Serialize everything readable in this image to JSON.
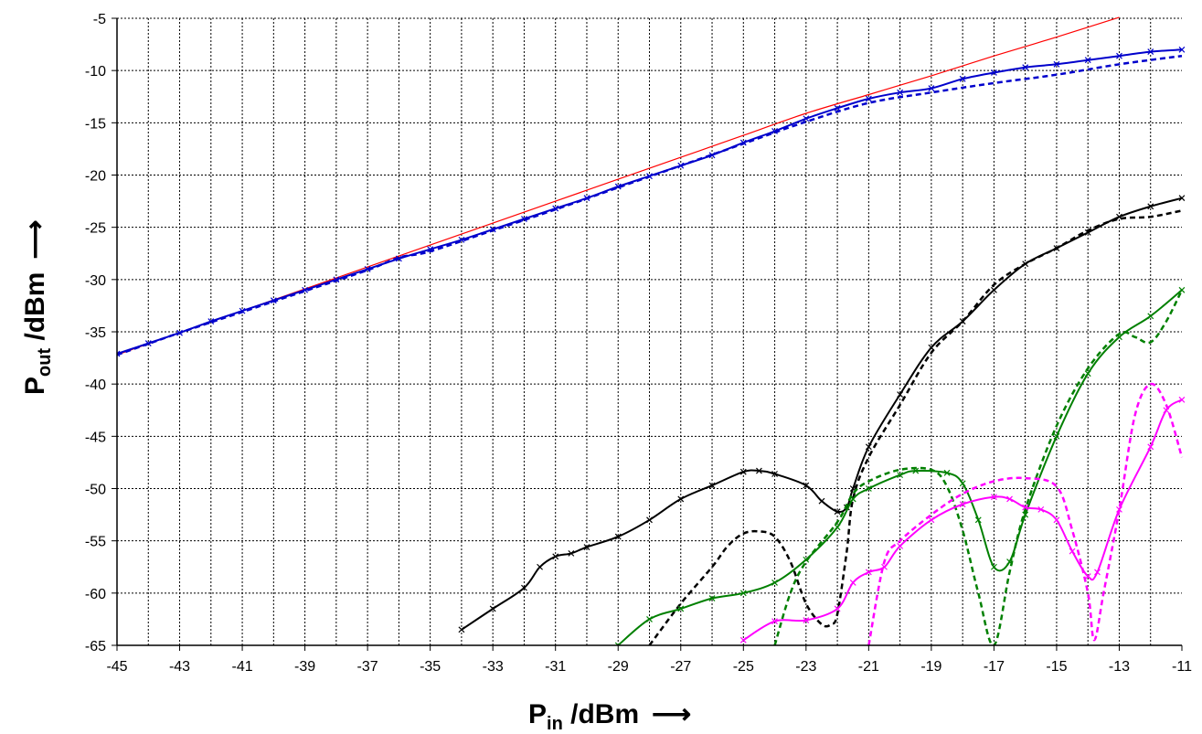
{
  "chart_data": {
    "type": "line",
    "xlabel": {
      "main": "P",
      "sub": "in",
      "rest": " /dBm",
      "arrow": "⟶"
    },
    "ylabel": {
      "main": "P",
      "sub": "out",
      "rest": " /dBm",
      "arrow": "⟶"
    },
    "xlim": [
      -45,
      -11
    ],
    "ylim": [
      -65,
      -5
    ],
    "x_ticks": [
      -45,
      -43,
      -41,
      -39,
      -37,
      -35,
      -33,
      -31,
      -29,
      -27,
      -25,
      -23,
      -21,
      -19,
      -17,
      -15,
      -13,
      -11
    ],
    "y_ticks": [
      -5,
      -10,
      -15,
      -20,
      -25,
      -30,
      -35,
      -40,
      -45,
      -50,
      -55,
      -60,
      -65
    ],
    "grid": true,
    "colors": {
      "red": "#ff0000",
      "blue": "#0000cc",
      "black": "#000000",
      "green": "#008000",
      "magenta": "#ff00ff"
    },
    "series": [
      {
        "color": "red",
        "style": "solid",
        "marker": "none",
        "points": [
          [
            -45,
            -37.2
          ],
          [
            -43,
            -35.1
          ],
          [
            -41,
            -33
          ],
          [
            -39,
            -30.9
          ],
          [
            -37,
            -28.8
          ],
          [
            -35,
            -26.7
          ],
          [
            -33,
            -24.6
          ],
          [
            -31,
            -22.5
          ],
          [
            -29,
            -20.4
          ],
          [
            -27,
            -18.3
          ],
          [
            -25,
            -16.2
          ],
          [
            -23,
            -14.1
          ],
          [
            -21,
            -12.3
          ],
          [
            -19,
            -10.5
          ],
          [
            -17,
            -8.6
          ],
          [
            -15,
            -6.8
          ],
          [
            -13,
            -4.9
          ]
        ]
      },
      {
        "color": "blue",
        "style": "solid",
        "marker": "x",
        "points": [
          [
            -45,
            -37.1
          ],
          [
            -44,
            -36.1
          ],
          [
            -43,
            -35.1
          ],
          [
            -42,
            -34
          ],
          [
            -41,
            -33
          ],
          [
            -40,
            -32
          ],
          [
            -39,
            -31
          ],
          [
            -38,
            -30
          ],
          [
            -37,
            -29
          ],
          [
            -36,
            -28
          ],
          [
            -35,
            -27.1
          ],
          [
            -34,
            -26.2
          ],
          [
            -33,
            -25.2
          ],
          [
            -32,
            -24.2
          ],
          [
            -31,
            -23.2
          ],
          [
            -30,
            -22.2
          ],
          [
            -29,
            -21.1
          ],
          [
            -28,
            -20.1
          ],
          [
            -27,
            -19.1
          ],
          [
            -26,
            -18.1
          ],
          [
            -25,
            -16.9
          ],
          [
            -24,
            -15.8
          ],
          [
            -23,
            -14.6
          ],
          [
            -22,
            -13.6
          ],
          [
            -21,
            -12.7
          ],
          [
            -20,
            -12.1
          ],
          [
            -19,
            -11.7
          ],
          [
            -18,
            -10.8
          ],
          [
            -17,
            -10.2
          ],
          [
            -16,
            -9.7
          ],
          [
            -15,
            -9.4
          ],
          [
            -14,
            -9
          ],
          [
            -13,
            -8.6
          ],
          [
            -12,
            -8.2
          ],
          [
            -11,
            -8
          ]
        ]
      },
      {
        "color": "blue",
        "style": "dashed",
        "marker": "none",
        "points": [
          [
            -45,
            -37.2
          ],
          [
            -43,
            -35.1
          ],
          [
            -41,
            -33.1
          ],
          [
            -39,
            -31.1
          ],
          [
            -37,
            -29.1
          ],
          [
            -36,
            -27.9
          ],
          [
            -35,
            -27.3
          ],
          [
            -33,
            -25.3
          ],
          [
            -31,
            -23.3
          ],
          [
            -29,
            -21.2
          ],
          [
            -27,
            -19.1
          ],
          [
            -25,
            -17
          ],
          [
            -23,
            -14.9
          ],
          [
            -21,
            -13.1
          ],
          [
            -19,
            -12.1
          ],
          [
            -17,
            -11.2
          ],
          [
            -15,
            -10.4
          ],
          [
            -13,
            -9.4
          ],
          [
            -11,
            -8.6
          ]
        ]
      },
      {
        "color": "black",
        "style": "solid",
        "marker": "x",
        "points": [
          [
            -34,
            -63.5
          ],
          [
            -33,
            -61.5
          ],
          [
            -32,
            -59.5
          ],
          [
            -31.5,
            -57.5
          ],
          [
            -31,
            -56.5
          ],
          [
            -30.5,
            -56.2
          ],
          [
            -30,
            -55.6
          ],
          [
            -29,
            -54.6
          ],
          [
            -28,
            -53
          ],
          [
            -27,
            -51
          ],
          [
            -26,
            -49.7
          ],
          [
            -25,
            -48.4
          ],
          [
            -24.5,
            -48.3
          ],
          [
            -24,
            -48.6
          ],
          [
            -23,
            -49.7
          ],
          [
            -22.5,
            -51.2
          ],
          [
            -22,
            -52.2
          ],
          [
            -21.7,
            -51.8
          ],
          [
            -21.5,
            -50
          ],
          [
            -21,
            -46
          ],
          [
            -20,
            -41
          ],
          [
            -19,
            -36.5
          ],
          [
            -18,
            -34
          ],
          [
            -17,
            -31
          ],
          [
            -16,
            -28.5
          ],
          [
            -15,
            -27
          ],
          [
            -14,
            -25.5
          ],
          [
            -13,
            -24
          ],
          [
            -12,
            -23
          ],
          [
            -11,
            -22.2
          ]
        ]
      },
      {
        "color": "black",
        "style": "dashed",
        "marker": "none",
        "points": [
          [
            -28,
            -65
          ],
          [
            -27,
            -61
          ],
          [
            -26,
            -57.5
          ],
          [
            -25.5,
            -55.5
          ],
          [
            -25,
            -54.3
          ],
          [
            -24.5,
            -54.1
          ],
          [
            -24,
            -54.6
          ],
          [
            -23.5,
            -57
          ],
          [
            -23,
            -61
          ],
          [
            -22.5,
            -63
          ],
          [
            -22.2,
            -63
          ],
          [
            -22,
            -62
          ],
          [
            -21.7,
            -56
          ],
          [
            -21.5,
            -51
          ],
          [
            -21,
            -47
          ],
          [
            -20,
            -42
          ],
          [
            -19,
            -37
          ],
          [
            -18,
            -34
          ],
          [
            -17,
            -30.5
          ],
          [
            -16,
            -28.5
          ],
          [
            -15,
            -27
          ],
          [
            -14,
            -25.3
          ],
          [
            -13,
            -24.2
          ],
          [
            -12,
            -24
          ],
          [
            -11,
            -23.4
          ]
        ]
      },
      {
        "color": "green",
        "style": "solid",
        "marker": "x",
        "points": [
          [
            -29,
            -65
          ],
          [
            -28,
            -62.5
          ],
          [
            -27,
            -61.5
          ],
          [
            -26,
            -60.5
          ],
          [
            -25,
            -60
          ],
          [
            -24,
            -59
          ],
          [
            -23,
            -56.8
          ],
          [
            -22,
            -53.7
          ],
          [
            -21.5,
            -51
          ],
          [
            -21,
            -50
          ],
          [
            -20,
            -48.7
          ],
          [
            -19.5,
            -48.3
          ],
          [
            -18.5,
            -48.5
          ],
          [
            -18,
            -49.5
          ],
          [
            -17.5,
            -53
          ],
          [
            -17,
            -57.5
          ],
          [
            -16.5,
            -57
          ],
          [
            -16,
            -52.5
          ],
          [
            -15,
            -45
          ],
          [
            -14,
            -39
          ],
          [
            -13,
            -35.5
          ],
          [
            -12,
            -33.5
          ],
          [
            -11,
            -31
          ]
        ]
      },
      {
        "color": "green",
        "style": "dashed",
        "marker": "none",
        "points": [
          [
            -24,
            -65
          ],
          [
            -23.5,
            -60
          ],
          [
            -23,
            -57
          ],
          [
            -22,
            -53.2
          ],
          [
            -21.5,
            -50.5
          ],
          [
            -21,
            -49.3
          ],
          [
            -20,
            -48.2
          ],
          [
            -19,
            -48.2
          ],
          [
            -18.5,
            -49.8
          ],
          [
            -18,
            -54
          ],
          [
            -17.5,
            -60
          ],
          [
            -17,
            -65
          ],
          [
            -16.5,
            -58
          ],
          [
            -16,
            -52
          ],
          [
            -15,
            -44
          ],
          [
            -14,
            -38.5
          ],
          [
            -13,
            -35.2
          ],
          [
            -12.5,
            -35.5
          ],
          [
            -12,
            -36
          ],
          [
            -11.5,
            -34
          ],
          [
            -11,
            -31
          ]
        ]
      },
      {
        "color": "magenta",
        "style": "solid",
        "marker": "x",
        "points": [
          [
            -25,
            -64.5
          ],
          [
            -24,
            -62.7
          ],
          [
            -23,
            -62.6
          ],
          [
            -22,
            -61.5
          ],
          [
            -21.5,
            -59
          ],
          [
            -21,
            -58
          ],
          [
            -20.5,
            -57.5
          ],
          [
            -20,
            -55.5
          ],
          [
            -19,
            -53
          ],
          [
            -18,
            -51.5
          ],
          [
            -17,
            -50.8
          ],
          [
            -16.5,
            -51
          ],
          [
            -16,
            -51.8
          ],
          [
            -15.5,
            -52
          ],
          [
            -15,
            -53
          ],
          [
            -14.5,
            -56
          ],
          [
            -14,
            -58.4
          ],
          [
            -13.7,
            -58
          ],
          [
            -13,
            -52
          ],
          [
            -12,
            -46
          ],
          [
            -11.5,
            -42.5
          ],
          [
            -11,
            -41.5
          ]
        ]
      },
      {
        "color": "magenta",
        "style": "dashed",
        "marker": "none",
        "points": [
          [
            -21,
            -65
          ],
          [
            -20.5,
            -57
          ],
          [
            -20,
            -55
          ],
          [
            -19,
            -52.5
          ],
          [
            -18,
            -50.5
          ],
          [
            -17,
            -49.3
          ],
          [
            -16,
            -49
          ],
          [
            -15,
            -49.8
          ],
          [
            -14.5,
            -54
          ],
          [
            -14,
            -60
          ],
          [
            -13.8,
            -64.5
          ],
          [
            -13.5,
            -60
          ],
          [
            -13,
            -52
          ],
          [
            -12.5,
            -43
          ],
          [
            -12,
            -40
          ],
          [
            -11.5,
            -42
          ],
          [
            -11,
            -47
          ]
        ]
      }
    ]
  }
}
